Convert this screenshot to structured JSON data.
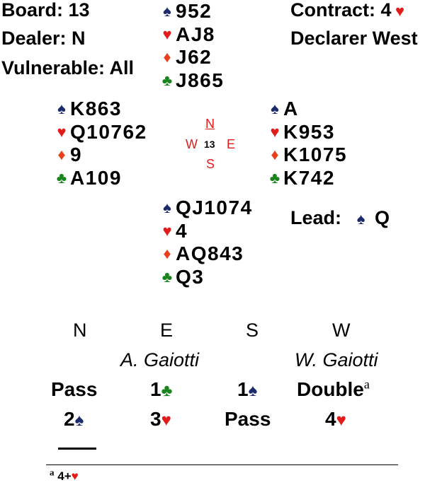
{
  "info": {
    "board": "Board: 13",
    "dealer": "Dealer: N",
    "vulnerable": "Vulnerable: All",
    "contract_label": "Contract: 4",
    "contract_suit": "heart",
    "declarer": "Declarer West"
  },
  "symbols": {
    "spade": "♠",
    "heart": "♥",
    "diamond": "♦",
    "club": "♣"
  },
  "hands": {
    "north": {
      "spades": "952",
      "hearts": "AJ8",
      "diamonds": "J62",
      "clubs": "J865"
    },
    "west": {
      "spades": "K863",
      "hearts": "Q10762",
      "diamonds": "9",
      "clubs": "A109"
    },
    "east": {
      "spades": "A",
      "hearts": "K953",
      "diamonds": "K1075",
      "clubs": "K742"
    },
    "south": {
      "spades": "QJ1074",
      "hearts": "4",
      "diamonds": "AQ843",
      "clubs": "Q3"
    }
  },
  "compass": {
    "n": "N",
    "s": "S",
    "e": "E",
    "w": "W",
    "board_number": "13"
  },
  "lead": {
    "label": "Lead:",
    "suit": "spade",
    "card": "Q"
  },
  "auction": {
    "seats": [
      "N",
      "E",
      "S",
      "W"
    ],
    "players": [
      "",
      "A. Gaiotti",
      "",
      "W. Gaiotti"
    ],
    "rounds": [
      [
        "Pass",
        "1♣",
        "1♠",
        "Double"
      ],
      [
        "2♠",
        "3♥",
        "Pass",
        "4♥"
      ]
    ],
    "alert_marker": "a"
  },
  "footnote": {
    "marker": "a",
    "text": "4+",
    "suit": "heart"
  }
}
